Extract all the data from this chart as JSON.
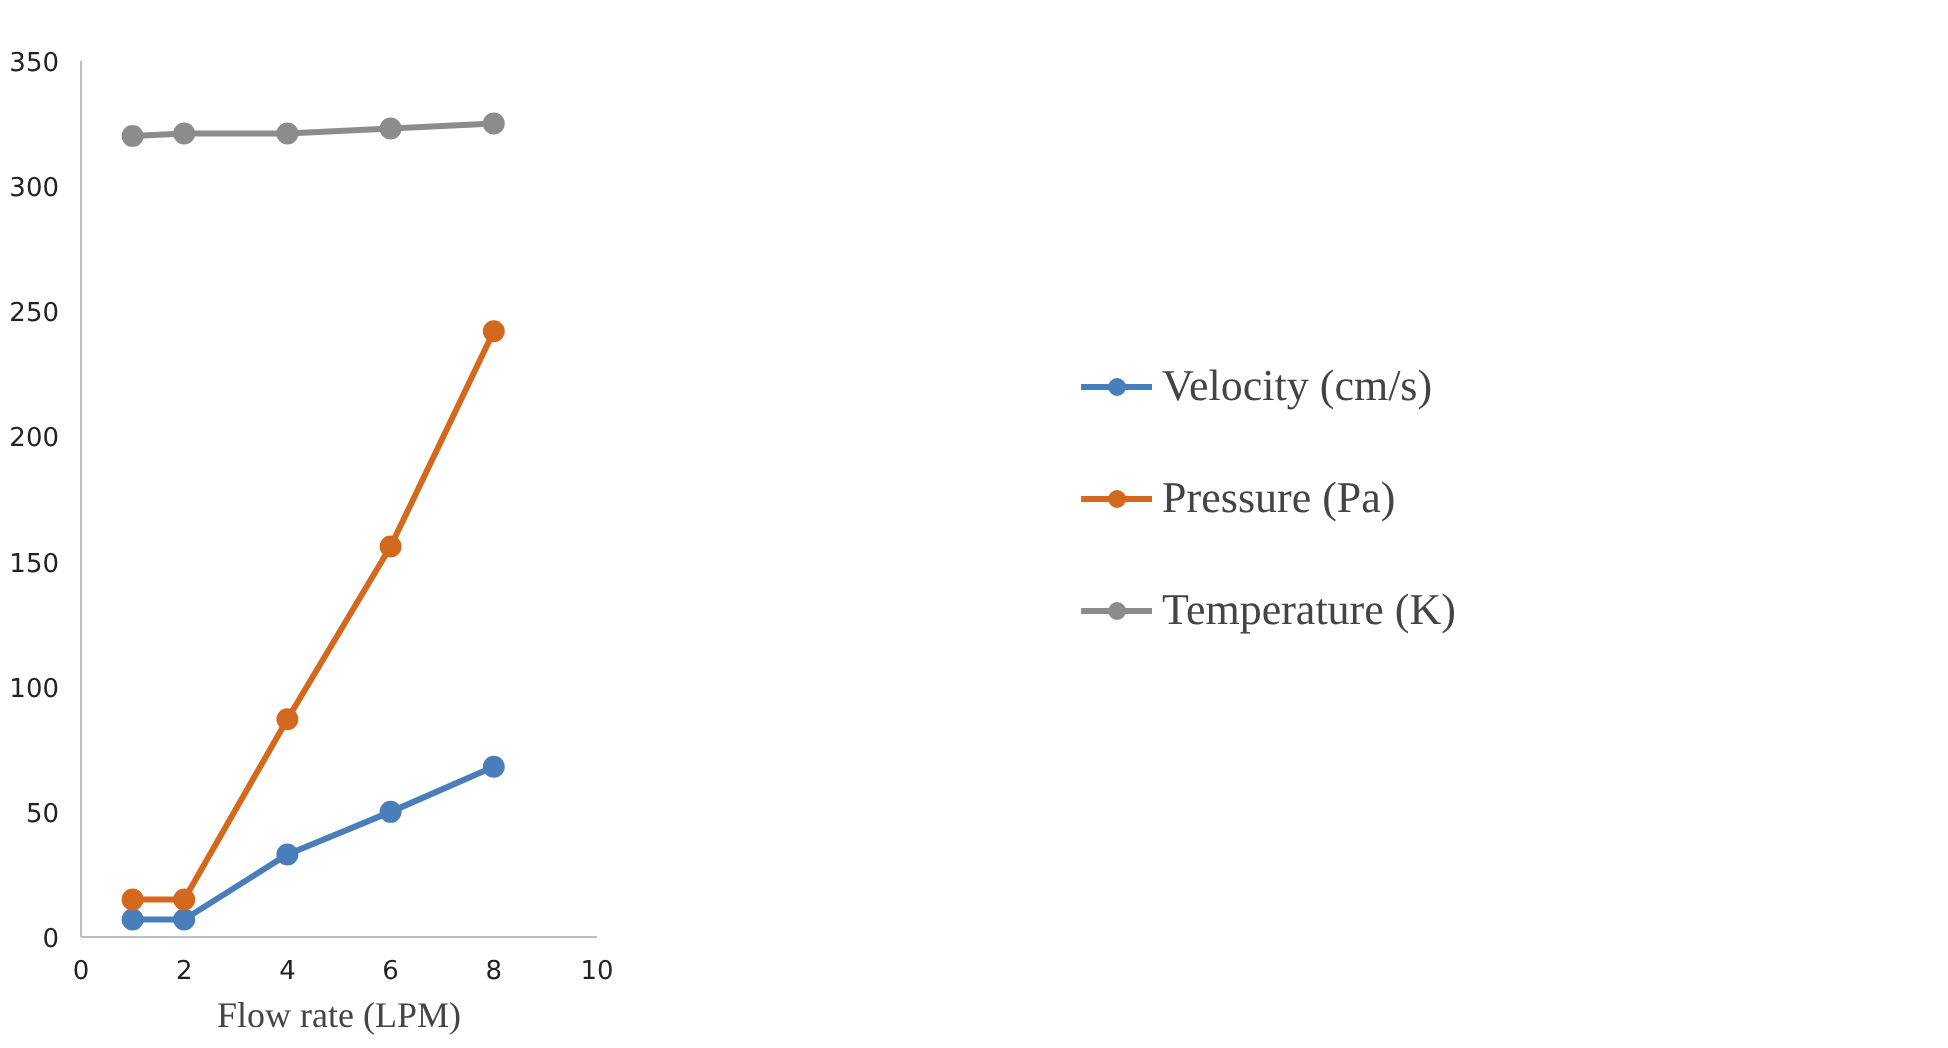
{
  "chart_data": {
    "type": "line",
    "xlabel": "Flow rate (LPM)",
    "x": [
      1,
      2,
      4,
      6,
      8
    ],
    "xlim": [
      0,
      10
    ],
    "xticks": [
      0,
      2,
      4,
      6,
      8,
      10
    ],
    "ylim": [
      0,
      350
    ],
    "yticks": [
      0,
      50,
      100,
      150,
      200,
      250,
      300,
      350
    ],
    "grid": false,
    "legend": "right",
    "marker": "circle",
    "line_style": "solid",
    "series": [
      {
        "name": "Velocity (cm/s)",
        "color": "#4a7ebb",
        "values": [
          7,
          7,
          33,
          50,
          68
        ]
      },
      {
        "name": "Pressure (Pa)",
        "color": "#d2691e",
        "values": [
          15,
          15,
          87,
          156,
          242
        ]
      },
      {
        "name": "Temperature (K)",
        "color": "#8c8c8c",
        "values": [
          320,
          321,
          321,
          323,
          325
        ]
      }
    ]
  }
}
